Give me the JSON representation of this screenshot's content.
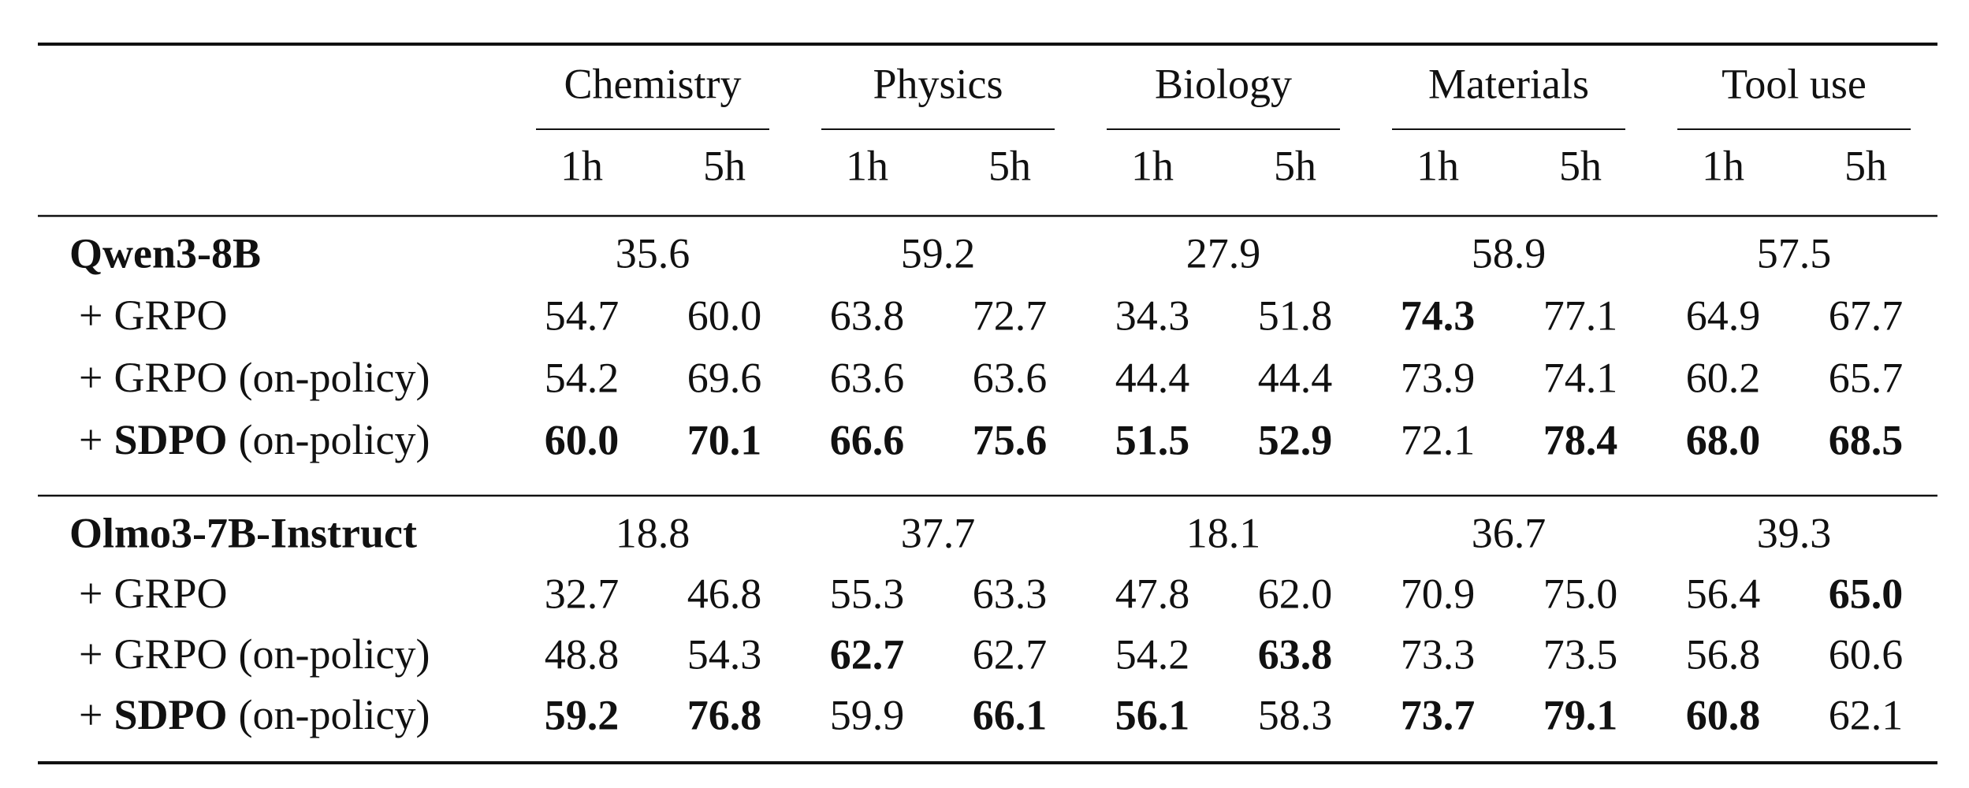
{
  "table": {
    "groups": [
      {
        "name": "Chemistry",
        "columns": [
          "1h",
          "5h"
        ]
      },
      {
        "name": "Physics",
        "columns": [
          "1h",
          "5h"
        ]
      },
      {
        "name": "Biology",
        "columns": [
          "1h",
          "5h"
        ]
      },
      {
        "name": "Materials",
        "columns": [
          "1h",
          "5h"
        ]
      },
      {
        "name": "Tool use",
        "columns": [
          "1h",
          "5h"
        ]
      }
    ],
    "sections": [
      {
        "model": "Qwen3-8B",
        "base": [
          "35.6",
          "59.2",
          "27.9",
          "58.9",
          "57.5"
        ],
        "rows": [
          {
            "prefix": "+",
            "method": "GRPO",
            "method_bold": false,
            "values": [
              "54.7",
              "60.0",
              "63.8",
              "72.7",
              "34.3",
              "51.8",
              "74.3",
              "77.1",
              "64.9",
              "67.7"
            ],
            "bold": [
              false,
              false,
              false,
              false,
              false,
              false,
              true,
              false,
              false,
              false
            ]
          },
          {
            "prefix": "+",
            "method": "GRPO",
            "qualifier": "(on-policy)",
            "method_bold": false,
            "values": [
              "54.2",
              "69.6",
              "63.6",
              "63.6",
              "44.4",
              "44.4",
              "73.9",
              "74.1",
              "60.2",
              "65.7"
            ],
            "bold": [
              false,
              false,
              false,
              false,
              false,
              false,
              false,
              false,
              false,
              false
            ]
          },
          {
            "prefix": "+",
            "method": "SDPO",
            "qualifier": "(on-policy)",
            "method_bold": true,
            "values": [
              "60.0",
              "70.1",
              "66.6",
              "75.6",
              "51.5",
              "52.9",
              "72.1",
              "78.4",
              "68.0",
              "68.5"
            ],
            "bold": [
              true,
              true,
              true,
              true,
              true,
              true,
              false,
              true,
              true,
              true
            ]
          }
        ]
      },
      {
        "model": "Olmo3-7B-Instruct",
        "base": [
          "18.8",
          "37.7",
          "18.1",
          "36.7",
          "39.3"
        ],
        "rows": [
          {
            "prefix": "+",
            "method": "GRPO",
            "method_bold": false,
            "values": [
              "32.7",
              "46.8",
              "55.3",
              "63.3",
              "47.8",
              "62.0",
              "70.9",
              "75.0",
              "56.4",
              "65.0"
            ],
            "bold": [
              false,
              false,
              false,
              false,
              false,
              false,
              false,
              false,
              false,
              true
            ]
          },
          {
            "prefix": "+",
            "method": "GRPO",
            "qualifier": "(on-policy)",
            "method_bold": false,
            "values": [
              "48.8",
              "54.3",
              "62.7",
              "62.7",
              "54.2",
              "63.8",
              "73.3",
              "73.5",
              "56.8",
              "60.6"
            ],
            "bold": [
              false,
              false,
              true,
              false,
              false,
              true,
              false,
              false,
              false,
              false
            ]
          },
          {
            "prefix": "+",
            "method": "SDPO",
            "qualifier": "(on-policy)",
            "method_bold": true,
            "values": [
              "59.2",
              "76.8",
              "59.9",
              "66.1",
              "56.1",
              "58.3",
              "73.7",
              "79.1",
              "60.8",
              "62.1"
            ],
            "bold": [
              true,
              true,
              false,
              true,
              true,
              false,
              true,
              true,
              true,
              false
            ]
          }
        ]
      }
    ]
  }
}
